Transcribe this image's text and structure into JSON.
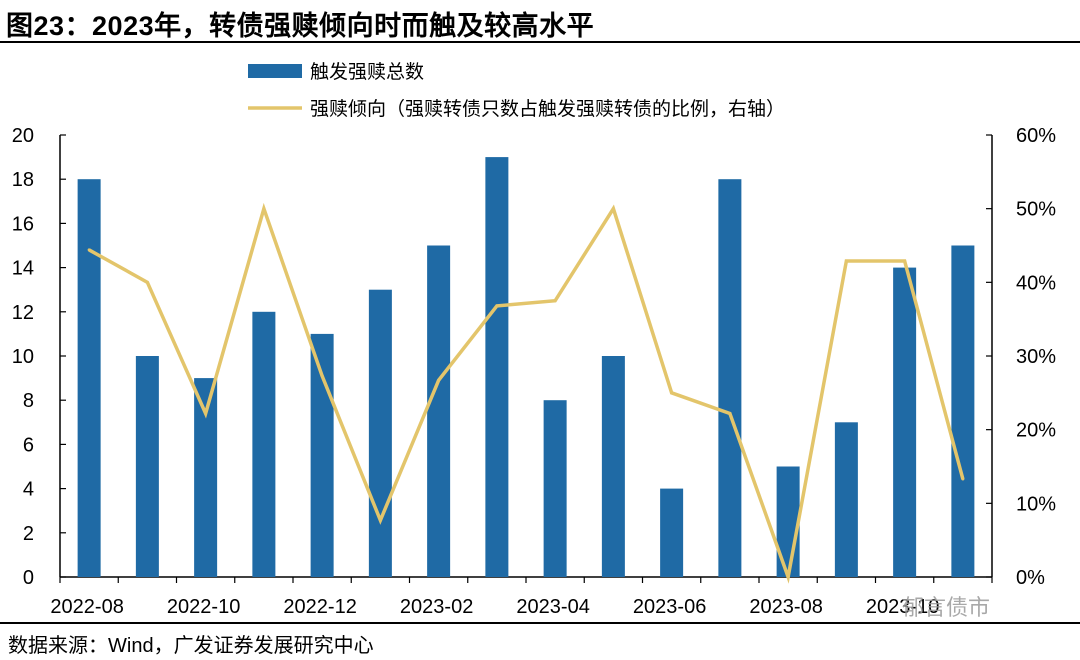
{
  "header": {
    "title": "图23：2023年，转债强赎倾向时而触及较高水平"
  },
  "footer": {
    "source": "数据来源：Wind，广发证券发展研究中心"
  },
  "watermark": {
    "text": "郁言债市"
  },
  "colors": {
    "bar": "#1f6aa5",
    "line": "#e3c56b",
    "axis": "#000000"
  },
  "chart_data": {
    "type": "bar",
    "title": "",
    "categories": [
      "2022-08",
      "2022-09",
      "2022-10",
      "2022-11",
      "2022-12",
      "2023-01",
      "2023-02",
      "2023-03",
      "2023-04",
      "2023-05",
      "2023-06",
      "2023-07",
      "2023-08",
      "2023-09",
      "2023-10",
      "2023-11"
    ],
    "x_tick_labels": [
      "2022-08",
      "2022-10",
      "2022-12",
      "2023-02",
      "2023-04",
      "2023-06",
      "2023-08",
      "2023-10"
    ],
    "series": [
      {
        "name": "触发强赎总数",
        "type": "bar",
        "axis": "left",
        "values": [
          18,
          10,
          9,
          12,
          11,
          13,
          15,
          19,
          8,
          10,
          4,
          18,
          5,
          7,
          14,
          15
        ]
      },
      {
        "name": "强赎倾向（强赎转债只数占触发强赎转债的比例，右轴）",
        "type": "line",
        "axis": "right",
        "values": [
          44.4,
          40.0,
          22.2,
          50.0,
          27.3,
          7.7,
          26.7,
          36.8,
          37.5,
          50.0,
          25.0,
          22.2,
          0.0,
          42.9,
          42.9,
          13.3
        ]
      }
    ],
    "y_left": {
      "min": 0,
      "max": 20,
      "ticks": [
        "0",
        "2",
        "4",
        "6",
        "8",
        "10",
        "12",
        "14",
        "16",
        "18",
        "20"
      ]
    },
    "y_right": {
      "min": 0,
      "max": 60,
      "ticks": [
        "0%",
        "10%",
        "20%",
        "30%",
        "40%",
        "50%",
        "60%"
      ]
    },
    "legend_position": "top-center"
  }
}
